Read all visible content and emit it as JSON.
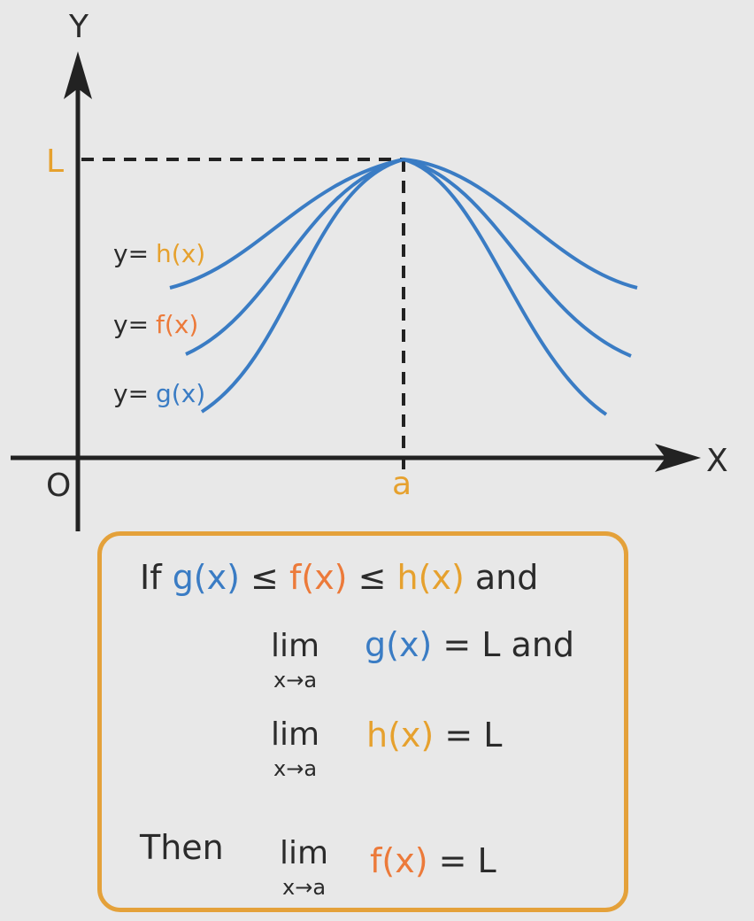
{
  "graph": {
    "axis_y_label": "Y",
    "axis_x_label": "X",
    "origin_label": "O",
    "L_label": "L",
    "a_label": "a",
    "curve_labels": {
      "h": {
        "prefix": "y=",
        "fn": "h(x)"
      },
      "f": {
        "prefix": "y=",
        "fn": "f(x)"
      },
      "g": {
        "prefix": "y=",
        "fn": "g(x)"
      }
    },
    "colors": {
      "curve": "#3a7cc4",
      "accent": "#e6a12e",
      "f": "#ec7a3a",
      "axis": "#222222"
    }
  },
  "theorem": {
    "line1": {
      "if": "If",
      "g": "g(x)",
      "le1": "≤",
      "f": "f(x)",
      "le2": "≤",
      "h": "h(x)",
      "and": "and"
    },
    "line2": {
      "lim": "lim",
      "sub": "x→a",
      "fn": "g(x)",
      "rest": "= L and"
    },
    "line3": {
      "lim": "lim",
      "sub": "x→a",
      "fn": "h(x)",
      "rest": "= L"
    },
    "line4": {
      "then": "Then",
      "lim": "lim",
      "sub": "x→a",
      "fn": "f(x)",
      "rest": "= L"
    }
  }
}
